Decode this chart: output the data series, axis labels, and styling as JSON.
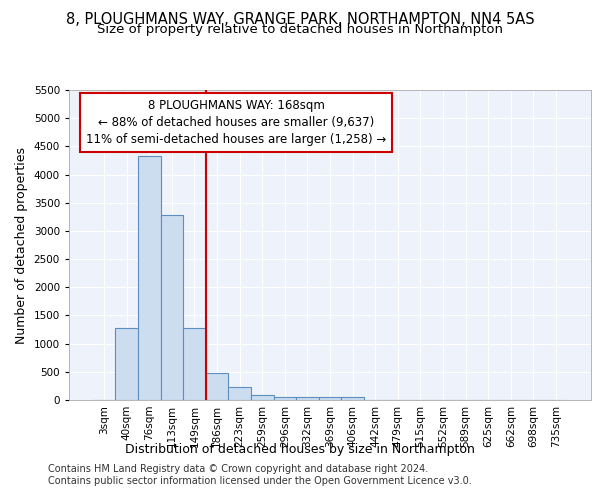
{
  "title": "8, PLOUGHMANS WAY, GRANGE PARK, NORTHAMPTON, NN4 5AS",
  "subtitle": "Size of property relative to detached houses in Northampton",
  "xlabel": "Distribution of detached houses by size in Northampton",
  "ylabel": "Number of detached properties",
  "categories": [
    "3sqm",
    "40sqm",
    "76sqm",
    "113sqm",
    "149sqm",
    "186sqm",
    "223sqm",
    "259sqm",
    "296sqm",
    "332sqm",
    "369sqm",
    "406sqm",
    "442sqm",
    "479sqm",
    "515sqm",
    "552sqm",
    "589sqm",
    "625sqm",
    "662sqm",
    "698sqm",
    "735sqm"
  ],
  "values": [
    0,
    1280,
    4330,
    3280,
    1280,
    480,
    235,
    85,
    60,
    55,
    55,
    55,
    0,
    0,
    0,
    0,
    0,
    0,
    0,
    0,
    0
  ],
  "bar_color": "#ccddf0",
  "bar_edge_color": "#5a8fc0",
  "vline_color": "#cc0000",
  "annotation_line1": "8 PLOUGHMANS WAY: 168sqm",
  "annotation_line2": "← 88% of detached houses are smaller (9,637)",
  "annotation_line3": "11% of semi-detached houses are larger (1,258) →",
  "annotation_box_color": "#cc0000",
  "ylim": [
    0,
    5500
  ],
  "yticks": [
    0,
    500,
    1000,
    1500,
    2000,
    2500,
    3000,
    3500,
    4000,
    4500,
    5000,
    5500
  ],
  "background_color": "#eef2fa",
  "grid_color": "#ffffff",
  "footer_line1": "Contains HM Land Registry data © Crown copyright and database right 2024.",
  "footer_line2": "Contains public sector information licensed under the Open Government Licence v3.0.",
  "title_fontsize": 10.5,
  "subtitle_fontsize": 9.5,
  "axis_label_fontsize": 9,
  "tick_fontsize": 7.5,
  "footer_fontsize": 7
}
